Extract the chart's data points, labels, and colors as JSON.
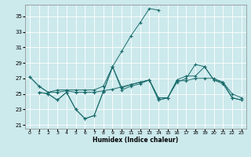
{
  "xlabel": "Humidex (Indice chaleur)",
  "xlim": [
    -0.5,
    23.5
  ],
  "ylim": [
    20.5,
    36.5
  ],
  "yticks": [
    21,
    23,
    25,
    27,
    29,
    31,
    33,
    35
  ],
  "xticks": [
    0,
    1,
    2,
    3,
    4,
    5,
    6,
    7,
    8,
    9,
    10,
    11,
    12,
    13,
    14,
    15,
    16,
    17,
    18,
    19,
    20,
    21,
    22,
    23
  ],
  "bg_color": "#cce9ec",
  "line_color": "#1a6b6b",
  "lines": [
    {
      "x": [
        0,
        1,
        2,
        3,
        4,
        5,
        6,
        7,
        8,
        9,
        10,
        11,
        12,
        13,
        14
      ],
      "y": [
        27.2,
        26.0,
        25.2,
        25.5,
        25.5,
        25.5,
        25.5,
        25.5,
        26.0,
        28.5,
        30.5,
        32.5,
        34.2,
        36.0,
        35.8
      ]
    },
    {
      "x": [
        0,
        1,
        2,
        3,
        4,
        5,
        6,
        7,
        8,
        9,
        10,
        11,
        12,
        13,
        14,
        15,
        16,
        17,
        18,
        19,
        20,
        21,
        22,
        23
      ],
      "y": [
        27.2,
        26.0,
        25.2,
        25.2,
        25.4,
        25.2,
        25.2,
        25.2,
        25.4,
        25.6,
        25.9,
        26.2,
        26.5,
        26.8,
        24.5,
        24.5,
        26.7,
        26.7,
        27.0,
        27.0,
        27.0,
        26.5,
        25.0,
        24.5
      ]
    },
    {
      "x": [
        1,
        2,
        3,
        4,
        5,
        6,
        7,
        8,
        9,
        10,
        11,
        12,
        13,
        14,
        15,
        16,
        17,
        18,
        19,
        20,
        21,
        22,
        23
      ],
      "y": [
        25.2,
        25.0,
        24.2,
        25.2,
        23.0,
        21.8,
        22.2,
        25.3,
        28.5,
        25.8,
        26.2,
        26.5,
        26.8,
        24.2,
        24.5,
        26.8,
        27.3,
        27.3,
        28.5,
        26.8,
        26.5,
        24.5,
        24.2
      ]
    },
    {
      "x": [
        1,
        2,
        3,
        4,
        5,
        6,
        7,
        8,
        9,
        10,
        11,
        12,
        13,
        14,
        15,
        16,
        17,
        18,
        19,
        20,
        21,
        22,
        23
      ],
      "y": [
        25.2,
        25.0,
        24.2,
        25.2,
        23.0,
        21.8,
        22.2,
        25.3,
        28.5,
        25.5,
        26.0,
        26.3,
        26.8,
        24.2,
        24.5,
        26.5,
        27.0,
        28.8,
        28.5,
        26.8,
        26.3,
        24.5,
        24.2
      ]
    }
  ]
}
